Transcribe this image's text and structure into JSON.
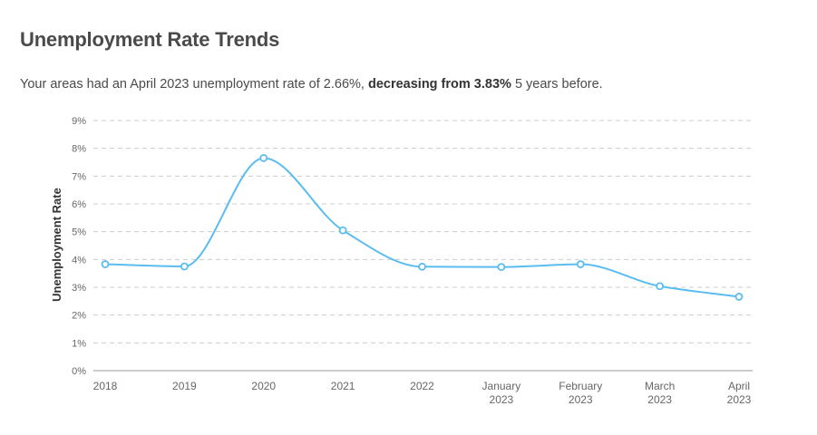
{
  "header": {
    "title": "Unemployment Rate Trends",
    "summary_prefix": "Your areas had an April 2023 unemployment rate of 2.66%, ",
    "summary_bold": "decreasing from 3.83%",
    "summary_suffix": " 5 years before."
  },
  "chart_data": {
    "type": "line",
    "title": "Unemployment Rate Trends",
    "ylabel": "Unemployment Rate",
    "xlabel": "",
    "ylim": [
      0,
      9
    ],
    "yticks": [
      "0%",
      "1%",
      "2%",
      "3%",
      "4%",
      "5%",
      "6%",
      "7%",
      "8%",
      "9%"
    ],
    "grid": true,
    "categories": [
      [
        "2018"
      ],
      [
        "2019"
      ],
      [
        "2020"
      ],
      [
        "2021"
      ],
      [
        "2022"
      ],
      [
        "January",
        "2023"
      ],
      [
        "February",
        "2023"
      ],
      [
        "March",
        "2023"
      ],
      [
        "April",
        "2023"
      ]
    ],
    "series": [
      {
        "values": [
          3.83,
          3.75,
          7.65,
          5.05,
          3.74,
          3.73,
          3.83,
          3.04,
          2.66
        ],
        "color": "#5bbcf0"
      }
    ],
    "colors": {
      "line": "#5bbcf0",
      "grid": "#cccccc",
      "axis": "#999999",
      "tick_text": "#666666"
    }
  }
}
